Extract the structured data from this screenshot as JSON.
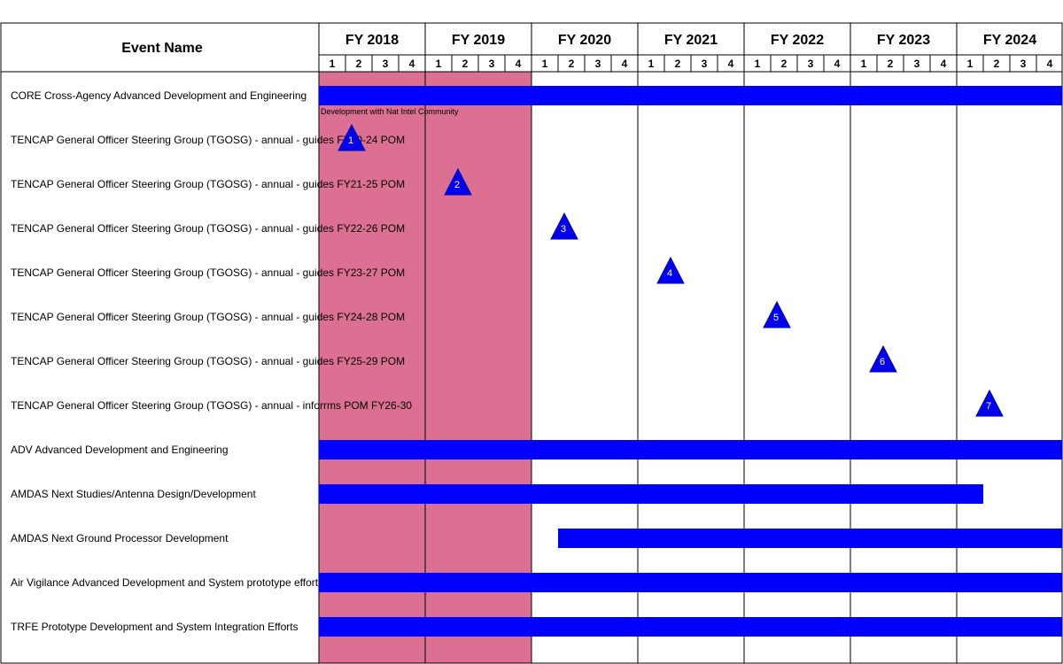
{
  "chart_data": {
    "type": "gantt",
    "header": "Event Name",
    "fiscal_years": [
      "FY 2018",
      "FY 2019",
      "FY 2020",
      "FY 2021",
      "FY 2022",
      "FY 2023",
      "FY 2024"
    ],
    "quarters": [
      "1",
      "2",
      "3",
      "4"
    ],
    "shaded_period": {
      "start": "FY 2018 Q1",
      "end": "FY 2019 Q4",
      "color": "#DC7092"
    },
    "bar_color": "#0000FF",
    "rows": [
      {
        "name": "CORE Cross-Agency Advanced Development and Engineering",
        "kind": "bar",
        "start": 0.0,
        "end": 7.0,
        "annotation": "Development with Nat Intel Community"
      },
      {
        "name": "TENCAP General Officer Steering Group (TGOSG) - annual - guides FY20-24 POM",
        "kind": "milestone",
        "at": 0.25,
        "label": "1"
      },
      {
        "name": "TENCAP General Officer Steering Group (TGOSG) - annual - guides FY21-25 POM",
        "kind": "milestone",
        "at": 1.25,
        "label": "2"
      },
      {
        "name": "TENCAP General Officer Steering Group (TGOSG) - annual - guides FY22-26 POM",
        "kind": "milestone",
        "at": 2.25,
        "label": "3"
      },
      {
        "name": "TENCAP General Officer Steering Group (TGOSG) - annual - guides FY23-27 POM",
        "kind": "milestone",
        "at": 3.25,
        "label": "4"
      },
      {
        "name": "TENCAP General Officer Steering Group (TGOSG) - annual - guides FY24-28 POM",
        "kind": "milestone",
        "at": 4.25,
        "label": "5"
      },
      {
        "name": "TENCAP General Officer Steering Group (TGOSG) - annual - guides FY25-29 POM",
        "kind": "milestone",
        "at": 5.25,
        "label": "6"
      },
      {
        "name": "TENCAP General Officer Steering Group (TGOSG) - annual - inforrms POM FY26-30",
        "kind": "milestone",
        "at": 6.25,
        "label": "7"
      },
      {
        "name": "ADV Advanced Development and Engineering",
        "kind": "bar",
        "start": 0.0,
        "end": 7.0
      },
      {
        "name": "AMDAS Next Studies/Antenna Design/Development",
        "kind": "bar",
        "start": 0.0,
        "end": 6.25
      },
      {
        "name": "AMDAS Next Ground Processor Development",
        "kind": "bar",
        "start": 2.25,
        "end": 7.0
      },
      {
        "name": "Air Vigilance Advanced Development and System prototype efforts",
        "kind": "bar",
        "start": 0.0,
        "end": 7.0
      },
      {
        "name": "TRFE Prototype Development and System Integration Efforts",
        "kind": "bar",
        "start": 0.0,
        "end": 7.0
      }
    ]
  }
}
